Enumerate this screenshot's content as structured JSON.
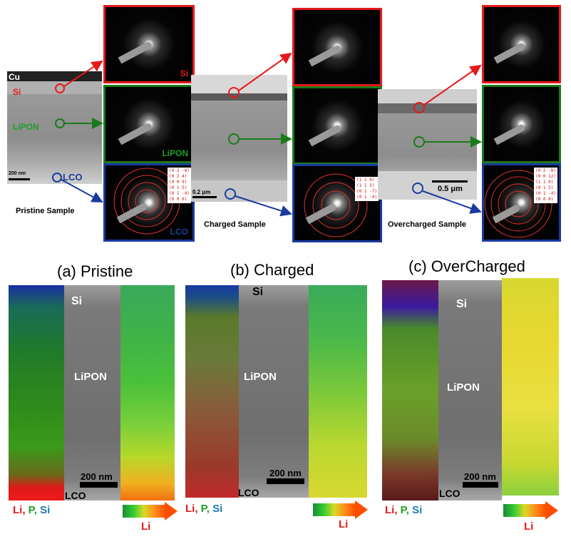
{
  "top": {
    "pristine": {
      "caption": "Pristine Sample",
      "labels": {
        "cu": "Cu",
        "si": "Si",
        "lipon": "LiPON",
        "lco": "LCO"
      },
      "scale": "200 nm",
      "saed_labels": {
        "si": "Si",
        "lipon": "LiPON",
        "lco": "LCO"
      },
      "indices": [
        "(0 2 -8)",
        "(0 2 4)",
        "(0 0 9)",
        "(0 1 5)",
        "(0 1 -4)",
        "(0 0 6)"
      ]
    },
    "charged": {
      "caption": "Charged Sample",
      "scale": "0.2 μm",
      "indices": [
        "(1 1 9)",
        "(1 1 3)",
        "(0 1 -7)",
        "(0 1 -4)"
      ]
    },
    "overcharged": {
      "caption": "Overcharged Sample",
      "scale": "0.5 μm",
      "indices": [
        "(0 2 -8)",
        "(0 0 12)",
        "(1 1 0)",
        "(0 1 5)",
        "(0 1 -4)",
        "(0 0 6)"
      ]
    }
  },
  "bottom": {
    "a": {
      "title": "(a) Pristine",
      "si": "Si",
      "lipon": "LiPON",
      "lco": "LCO",
      "scale": "200 nm"
    },
    "b": {
      "title": "(b) Charged",
      "si": "Si",
      "lipon": "LiPON",
      "lco": "LCO",
      "scale": "200 nm"
    },
    "c": {
      "title": "(c) OverCharged",
      "si": "Si",
      "lipon": "LiPON",
      "lco": "LCO",
      "scale": "200 nm"
    },
    "legend": {
      "li": "Li,",
      "p": "P,",
      "si": "Si",
      "li_scale": "Li"
    }
  },
  "colors": {
    "red": "#e41a1c",
    "green": "#1f9e2a",
    "blue": "#1e3c96"
  }
}
